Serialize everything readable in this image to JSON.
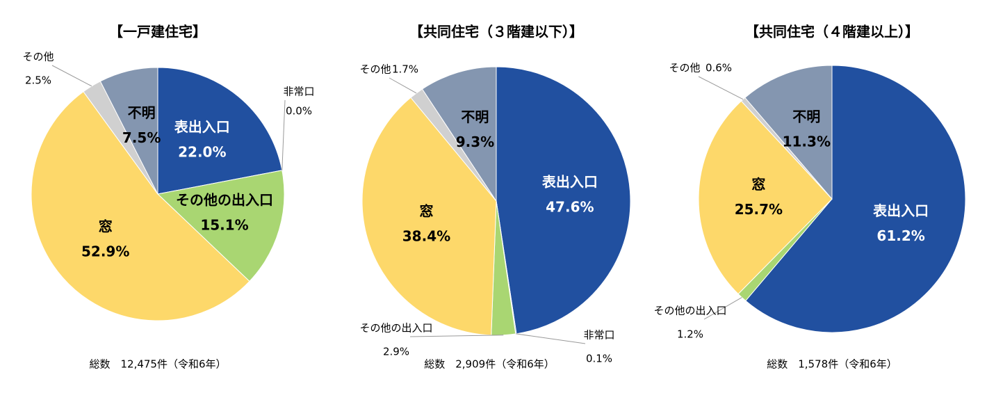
{
  "chart_data": [
    {
      "type": "pie",
      "title": "【一戸建住宅】",
      "note": "総数　12,475件（令和6年）",
      "categories": [
        "表出入口",
        "非常口",
        "その他の出入口",
        "窓",
        "その他",
        "不明"
      ],
      "values": [
        22.0,
        0.0,
        15.1,
        52.9,
        2.5,
        7.5
      ],
      "value_labels": [
        "22.0%",
        "0.0%",
        "15.1%",
        "52.9%",
        "2.5%",
        "7.5%"
      ],
      "colors": [
        "#2150a0",
        "#2150a0",
        "#a9d672",
        "#fdd86a",
        "#d0d0d0",
        "#8496b0"
      ]
    },
    {
      "type": "pie",
      "title": "【共同住宅（３階建以下）】",
      "note": "総数　2,909件（令和6年）",
      "categories": [
        "表出入口",
        "非常口",
        "その他の出入口",
        "窓",
        "その他",
        "不明"
      ],
      "values": [
        47.6,
        0.1,
        2.9,
        38.4,
        1.7,
        9.3
      ],
      "value_labels": [
        "47.6%",
        "0.1%",
        "2.9%",
        "38.4%",
        "1.7%",
        "9.3%"
      ],
      "colors": [
        "#2150a0",
        "#2150a0",
        "#a9d672",
        "#fdd86a",
        "#d0d0d0",
        "#8496b0"
      ]
    },
    {
      "type": "pie",
      "title": "【共同住宅（４階建以上）】",
      "note": "総数　1,578件（令和6年）",
      "categories": [
        "表出入口",
        "その他の出入口",
        "窓",
        "その他",
        "不明"
      ],
      "values": [
        61.2,
        1.2,
        25.7,
        0.6,
        11.3
      ],
      "value_labels": [
        "61.2%",
        "1.2%",
        "25.7%",
        "0.6%",
        "11.3%"
      ],
      "colors": [
        "#2150a0",
        "#a9d672",
        "#fdd86a",
        "#d0d0d0",
        "#8496b0"
      ]
    }
  ]
}
